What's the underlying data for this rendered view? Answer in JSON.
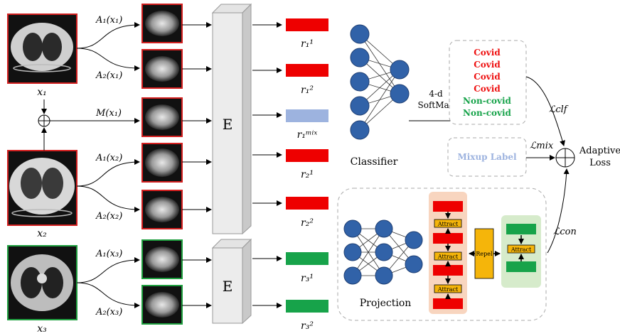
{
  "inputs": [
    {
      "label": "x₁",
      "border": "#d42020"
    },
    {
      "label": "x₂",
      "border": "#d42020"
    },
    {
      "label": "x₃",
      "border": "#20a040"
    }
  ],
  "aug_labels": {
    "a1x1": "A₁(x₁)",
    "a2x1": "A₂(x₁)",
    "mx1": "M(x₁)",
    "a1x2": "A₁(x₂)",
    "a2x2": "A₂(x₂)",
    "a1x3": "A₁(x₃)",
    "a2x3": "A₂(x₃)"
  },
  "encoder_label": "E",
  "reps": [
    {
      "label": "r₁¹",
      "color": "#ee0000"
    },
    {
      "label": "r₁²",
      "color": "#ee0000"
    },
    {
      "label": "r₁ᵐⁱˣ",
      "color": "#9db3df"
    },
    {
      "label": "r₂¹",
      "color": "#ee0000"
    },
    {
      "label": "r₂²",
      "color": "#ee0000"
    },
    {
      "label": "r₃¹",
      "color": "#17a34a"
    },
    {
      "label": "r₃²",
      "color": "#17a34a"
    }
  ],
  "classifier": {
    "label": "Classifier",
    "softmax_line1": "4-d",
    "softmax_line2": "SoftMax"
  },
  "predictions": [
    {
      "text": "Covid",
      "color": "#ee1111"
    },
    {
      "text": "Covid",
      "color": "#ee1111"
    },
    {
      "text": "Covid",
      "color": "#ee1111"
    },
    {
      "text": "Covid",
      "color": "#ee1111"
    },
    {
      "text": "Non-covid",
      "color": "#17a34a"
    },
    {
      "text": "Non-covid",
      "color": "#17a34a"
    }
  ],
  "mixup_label": "Mixup Label",
  "losses": {
    "clf": "ℒclf",
    "mix": "ℒmix",
    "con": "ℒcon",
    "adaptive_line1": "Adaptive",
    "adaptive_line2": "Loss"
  },
  "projection": {
    "label": "Projection",
    "attract": "Attract",
    "repel": "Repel"
  },
  "colors": {
    "node": "#3162a8",
    "node_edge": "#1f3f73",
    "red": "#ee0000",
    "green": "#17a34a",
    "mix": "#9db3df",
    "orange_bg": "#f8d5bf",
    "green_bg": "#d6ebcb",
    "attract": "#f5b50a"
  }
}
